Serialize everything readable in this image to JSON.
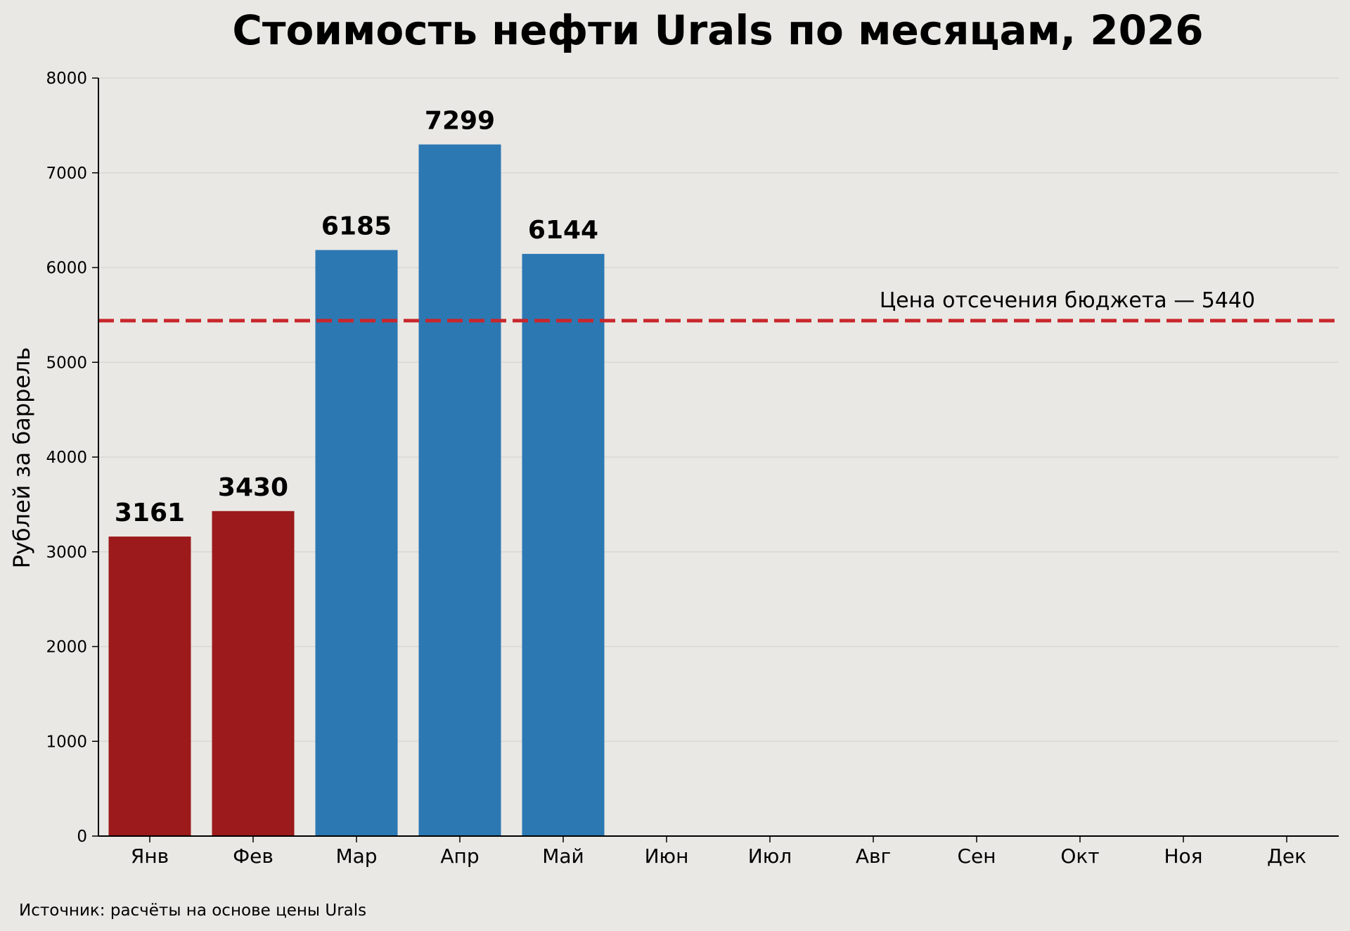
{
  "chart_data": {
    "type": "bar",
    "title": "Стоимость нефти Urals по месяцам, 2026",
    "xlabel": "",
    "ylabel": "Рублей за баррель",
    "ylim": [
      0,
      8000
    ],
    "yticks": [
      0,
      1000,
      2000,
      3000,
      4000,
      5000,
      6000,
      7000,
      8000
    ],
    "categories": [
      "Янв",
      "Фев",
      "Мар",
      "Апр",
      "Май",
      "Июн",
      "Июл",
      "Авг",
      "Сен",
      "Окт",
      "Ноя",
      "Дек"
    ],
    "values": [
      3161,
      3430,
      6185,
      7299,
      6144,
      null,
      null,
      null,
      null,
      null,
      null,
      null
    ],
    "bar_colors": [
      "#9c1a1b",
      "#9c1a1b",
      "#2c78b3",
      "#2c78b3",
      "#2c78b3"
    ],
    "grid": true,
    "reference_line": {
      "value": 5440,
      "label": "Цена отсечения бюджета — 5440",
      "color": "#c8262b",
      "style": "dashed"
    },
    "source": "Источник: расчёты на основе цены Urals"
  },
  "colors": {
    "background": "#e9e8e4",
    "below_cutoff": "#9c1a1b",
    "above_cutoff": "#2c78b3",
    "reference_line": "#c8262b",
    "grid": "#d8d7d3",
    "axis": "#000000"
  }
}
